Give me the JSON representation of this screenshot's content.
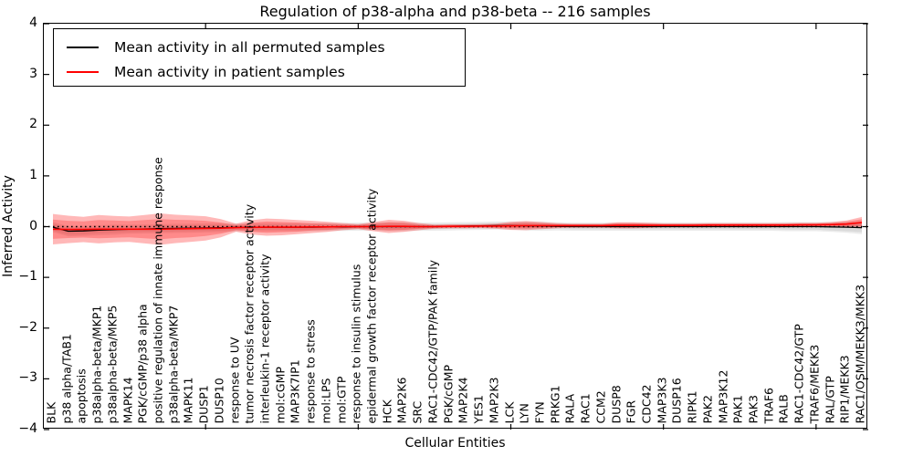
{
  "figure": {
    "background": "#ffffff"
  },
  "chart_data": {
    "type": "line",
    "title": "Regulation of p38-alpha and p38-beta -- 216 samples",
    "xlabel": "Cellular Entities",
    "ylabel": "Inferred Activity",
    "ylim": [
      -4,
      4
    ],
    "yticks": [
      4,
      3,
      2,
      1,
      0,
      -1,
      -2,
      -3,
      -4
    ],
    "yticklabels": [
      "4",
      "3",
      "2",
      "1",
      "0",
      "−1",
      "−2",
      "−3",
      "−4"
    ],
    "xtick_major_indices": [
      10,
      20,
      30,
      40,
      50
    ],
    "grid": false,
    "legend_position": "upper left",
    "zero_line": {
      "y": 0,
      "style": "dotted",
      "color": "#000000"
    },
    "categories": [
      "BLK",
      "p38 alpha/TAB1",
      "apoptosis",
      "p38alpha-beta/MKP1",
      "p38alpha-beta/MKP5",
      "MAPK14",
      "PGK/cGMP/p38 alpha",
      "positive regulation of innate immune response",
      "p38alpha-beta/MKP7",
      "MAPK11",
      "DUSP1",
      "DUSP10",
      "response to UV",
      "tumor necrosis factor receptor activity",
      "interleukin-1 receptor activity",
      "mol:cGMP",
      "MAP3K7IP1",
      "response to stress",
      "mol:LPS",
      "mol:GTP",
      "response to insulin stimulus",
      "epidermal growth factor receptor activity",
      "HCK",
      "MAP2K6",
      "SRC",
      "RAC1-CDC42/GTP/PAK family",
      "PGK/cGMP",
      "MAP2K4",
      "YES1",
      "MAP2K3",
      "LCK",
      "LYN",
      "FYN",
      "PRKG1",
      "RALA",
      "RAC1",
      "CCM2",
      "DUSP8",
      "FGR",
      "CDC42",
      "MAP3K3",
      "DUSP16",
      "RIPK1",
      "PAK2",
      "MAP3K12",
      "PAK1",
      "PAK3",
      "TRAF6",
      "RALB",
      "RAC1-CDC42/GTP",
      "TRAF6/MEKK3",
      "RAL/GTP",
      "RIP1/MEKK3",
      "RAC1/OSM/MEKK3/MKK3"
    ],
    "series": [
      {
        "name": "Mean activity in all permuted samples",
        "color": "#000000",
        "values": [
          -0.01,
          -0.09,
          -0.085,
          -0.07,
          -0.06,
          -0.05,
          -0.045,
          -0.04,
          -0.035,
          -0.03,
          -0.025,
          -0.02,
          -0.015,
          -0.015,
          -0.01,
          -0.01,
          -0.01,
          -0.01,
          -0.005,
          -0.005,
          0,
          0,
          0,
          0,
          0,
          0,
          0.005,
          0.01,
          0.015,
          0.02,
          0.02,
          0.015,
          0.01,
          0.005,
          0,
          0,
          0,
          0,
          0,
          0,
          0,
          0,
          0,
          0,
          0,
          0,
          0,
          0,
          0,
          0,
          0,
          -0.005,
          -0.01,
          -0.02
        ]
      },
      {
        "name": "Mean activity in patient samples",
        "color": "#ff0000",
        "values": [
          -0.05,
          -0.055,
          -0.055,
          -0.05,
          -0.05,
          -0.05,
          -0.05,
          -0.05,
          -0.045,
          -0.04,
          -0.035,
          -0.03,
          -0.02,
          -0.015,
          -0.01,
          -0.01,
          -0.01,
          -0.005,
          -0.005,
          0,
          0,
          0,
          0.005,
          0.005,
          0,
          0,
          0.005,
          0.005,
          0.01,
          0.01,
          0.015,
          0.02,
          0.02,
          0.02,
          0.02,
          0.02,
          0.02,
          0.025,
          0.025,
          0.025,
          0.025,
          0.025,
          0.025,
          0.03,
          0.03,
          0.03,
          0.03,
          0.03,
          0.03,
          0.035,
          0.035,
          0.04,
          0.05,
          0.08
        ]
      }
    ],
    "bands": [
      {
        "name": "permuted-samples-outer-band",
        "series_ref": 0,
        "fill": "#000000",
        "opacity": 0.08,
        "half_widths": [
          0.1,
          0.1,
          0.1,
          0.1,
          0.1,
          0.09,
          0.09,
          0.09,
          0.09,
          0.09,
          0.09,
          0.09,
          0.08,
          0.08,
          0.08,
          0.08,
          0.08,
          0.08,
          0.08,
          0.08,
          0.08,
          0.08,
          0.09,
          0.09,
          0.08,
          0.08,
          0.08,
          0.08,
          0.08,
          0.08,
          0.08,
          0.09,
          0.09,
          0.08,
          0.08,
          0.08,
          0.08,
          0.08,
          0.08,
          0.08,
          0.08,
          0.08,
          0.08,
          0.08,
          0.08,
          0.08,
          0.08,
          0.08,
          0.09,
          0.09,
          0.09,
          0.1,
          0.11,
          0.13
        ]
      },
      {
        "name": "permuted-samples-inner-band",
        "series_ref": 0,
        "fill": "#000000",
        "opacity": 0.07,
        "half_widths": [
          0.07,
          0.07,
          0.07,
          0.06,
          0.06,
          0.06,
          0.06,
          0.06,
          0.06,
          0.06,
          0.06,
          0.06,
          0.05,
          0.05,
          0.05,
          0.05,
          0.05,
          0.05,
          0.05,
          0.05,
          0.05,
          0.05,
          0.06,
          0.06,
          0.05,
          0.05,
          0.05,
          0.05,
          0.05,
          0.05,
          0.05,
          0.06,
          0.06,
          0.05,
          0.05,
          0.05,
          0.05,
          0.05,
          0.05,
          0.05,
          0.05,
          0.05,
          0.05,
          0.05,
          0.05,
          0.05,
          0.05,
          0.05,
          0.06,
          0.06,
          0.06,
          0.07,
          0.08,
          0.09
        ]
      },
      {
        "name": "patient-samples-outer-band",
        "series_ref": 1,
        "fill": "#ff0000",
        "opacity": 0.28,
        "half_widths": [
          0.3,
          0.27,
          0.25,
          0.28,
          0.26,
          0.25,
          0.28,
          0.31,
          0.28,
          0.26,
          0.24,
          0.18,
          0.08,
          0.14,
          0.17,
          0.16,
          0.14,
          0.12,
          0.1,
          0.07,
          0.05,
          0.09,
          0.13,
          0.11,
          0.07,
          0.04,
          0.04,
          0.04,
          0.04,
          0.05,
          0.08,
          0.09,
          0.07,
          0.05,
          0.04,
          0.04,
          0.04,
          0.06,
          0.06,
          0.05,
          0.04,
          0.04,
          0.04,
          0.04,
          0.04,
          0.04,
          0.04,
          0.04,
          0.04,
          0.04,
          0.04,
          0.05,
          0.07,
          0.11
        ]
      },
      {
        "name": "patient-samples-inner-band",
        "series_ref": 1,
        "fill": "#ff0000",
        "opacity": 0.25,
        "half_widths": [
          0.19,
          0.17,
          0.16,
          0.18,
          0.17,
          0.16,
          0.18,
          0.2,
          0.18,
          0.17,
          0.15,
          0.11,
          0.05,
          0.09,
          0.11,
          0.1,
          0.09,
          0.07,
          0.06,
          0.04,
          0.03,
          0.06,
          0.08,
          0.07,
          0.04,
          0.025,
          0.025,
          0.025,
          0.025,
          0.03,
          0.05,
          0.055,
          0.045,
          0.03,
          0.025,
          0.025,
          0.025,
          0.04,
          0.04,
          0.03,
          0.025,
          0.025,
          0.025,
          0.025,
          0.025,
          0.025,
          0.025,
          0.025,
          0.025,
          0.025,
          0.025,
          0.03,
          0.045,
          0.07
        ]
      }
    ]
  }
}
